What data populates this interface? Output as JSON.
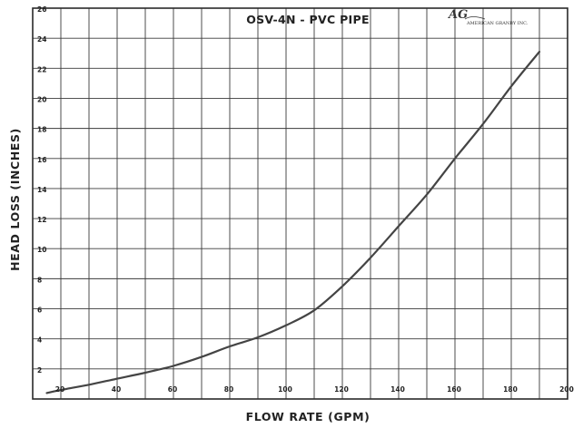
{
  "chart_data": {
    "type": "line",
    "title": "OSV-4N  -  PVC PIPE",
    "xlabel": "FLOW RATE (GPM)",
    "ylabel": "HEAD LOSS (INCHES)",
    "xlim": [
      10,
      200
    ],
    "ylim": [
      0,
      26
    ],
    "x_ticks": [
      20,
      40,
      60,
      80,
      100,
      120,
      140,
      160,
      180,
      200
    ],
    "x_tick_labels": [
      "20",
      "40",
      "60",
      "80",
      "100",
      "120",
      "140",
      "160",
      "180",
      "200"
    ],
    "y_ticks": [
      2,
      4,
      6,
      8,
      10,
      12,
      14,
      16,
      18,
      20,
      22,
      24,
      26
    ],
    "y_tick_labels": [
      "2",
      "4",
      "6",
      "8",
      "10",
      "12",
      "14",
      "16",
      "18",
      "20",
      "22",
      "24",
      "26"
    ],
    "x_grid_step": 10,
    "y_grid_step": 2,
    "grid": true,
    "legend": "none",
    "series": [
      {
        "x": [
          15,
          20,
          30,
          40,
          50,
          60,
          70,
          80,
          90,
          100,
          110,
          120,
          130,
          140,
          150,
          160,
          170,
          180,
          190
        ],
        "y": [
          0.4,
          0.6,
          0.95,
          1.35,
          1.75,
          2.2,
          2.8,
          3.5,
          4.1,
          4.9,
          5.9,
          7.5,
          9.4,
          11.5,
          13.6,
          16,
          18.3,
          20.8,
          23.1
        ]
      }
    ]
  },
  "logo": {
    "text": "AMERICAN GRANBY INC."
  },
  "colors": {
    "line": "#444444",
    "grid": "#3a3a3a",
    "text": "#222222",
    "background": "#ffffff"
  }
}
